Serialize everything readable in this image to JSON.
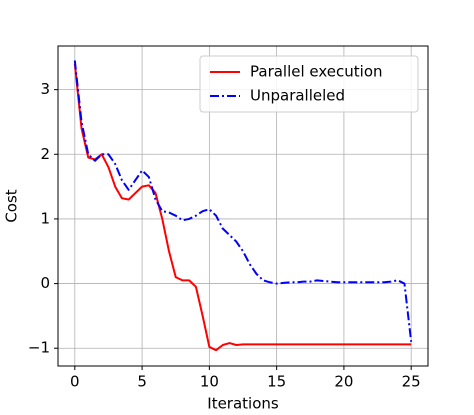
{
  "chart_data": {
    "type": "line",
    "xlabel": "Iterations",
    "ylabel": "Cost",
    "x": [
      0,
      0.5,
      1,
      1.5,
      2,
      2.5,
      3,
      3.5,
      4,
      4.5,
      5,
      5.5,
      6,
      6.5,
      7,
      7.5,
      8,
      8.5,
      9,
      9.5,
      10,
      10.5,
      11,
      11.5,
      12,
      12.5,
      13,
      13.5,
      14,
      14.5,
      15,
      15.5,
      16,
      16.5,
      17,
      17.5,
      18,
      18.5,
      19,
      19.5,
      20,
      20.5,
      21,
      21.5,
      22,
      22.5,
      23,
      23.5,
      24,
      24.5,
      25
    ],
    "series": [
      {
        "name": "Parallel execution",
        "color": "#ff0000",
        "dash": "solid",
        "values": [
          3.4,
          2.4,
          1.95,
          1.92,
          2.0,
          1.8,
          1.5,
          1.32,
          1.3,
          1.4,
          1.5,
          1.52,
          1.4,
          1.0,
          0.5,
          0.1,
          0.05,
          0.05,
          -0.05,
          -0.5,
          -0.98,
          -1.03,
          -0.95,
          -0.92,
          -0.95,
          -0.94,
          -0.94,
          -0.94,
          -0.94,
          -0.94,
          -0.94,
          -0.94,
          -0.94,
          -0.94,
          -0.94,
          -0.94,
          -0.94,
          -0.94,
          -0.94,
          -0.94,
          -0.94,
          -0.94,
          -0.94,
          -0.94,
          -0.94,
          -0.94,
          -0.94,
          -0.94,
          -0.94,
          -0.94,
          -0.94
        ]
      },
      {
        "name": "Unparalleled",
        "color": "#0000ff",
        "dash": "dashdot",
        "values": [
          3.45,
          2.5,
          2.0,
          1.9,
          2.0,
          2.0,
          1.85,
          1.6,
          1.45,
          1.6,
          1.75,
          1.65,
          1.3,
          1.12,
          1.1,
          1.05,
          0.98,
          1.0,
          1.05,
          1.12,
          1.15,
          1.05,
          0.85,
          0.75,
          0.65,
          0.5,
          0.3,
          0.15,
          0.05,
          0.02,
          0.0,
          0.01,
          0.02,
          0.02,
          0.03,
          0.03,
          0.05,
          0.04,
          0.03,
          0.02,
          0.02,
          0.02,
          0.02,
          0.02,
          0.02,
          0.02,
          0.02,
          0.03,
          0.05,
          0.0,
          -0.9
        ]
      }
    ],
    "xlim": [
      -1.25,
      26.25
    ],
    "ylim": [
      -1.275,
      3.675
    ],
    "xticks": [
      0,
      5,
      10,
      15,
      20,
      25
    ],
    "yticks": [
      {
        "value": -1,
        "label": "−1"
      },
      0,
      1,
      2,
      3
    ],
    "grid": true,
    "legend": "upper right"
  }
}
